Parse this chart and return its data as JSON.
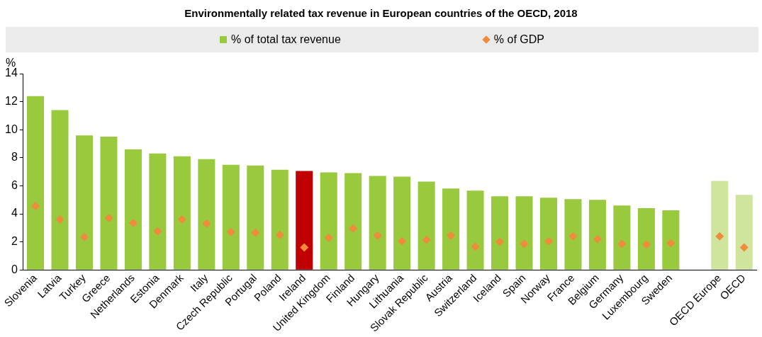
{
  "chart_data": {
    "type": "bar",
    "title": "Environmentally related tax revenue in European countries of the OECD, 2018",
    "ylabel": "%",
    "categories": [
      "Slovenia",
      "Latvia",
      "Turkey",
      "Greece",
      "Netherlands",
      "Estonia",
      "Denmark",
      "Italy",
      "Czech Republic",
      "Portugal",
      "Poland",
      "Ireland",
      "United Kingdom",
      "Finland",
      "Hungary",
      "Lithuania",
      "Slovak Republic",
      "Austria",
      "Switzerland",
      "Iceland",
      "Spain",
      "Norway",
      "France",
      "Belgium",
      "Germany",
      "Luxembourg",
      "Sweden",
      null,
      "OECD Europe",
      "OECD"
    ],
    "series": [
      {
        "name": "% of total tax revenue",
        "color": "#99c93c",
        "colors": [
          "#99c93c",
          "#99c93c",
          "#99c93c",
          "#99c93c",
          "#99c93c",
          "#99c93c",
          "#99c93c",
          "#99c93c",
          "#99c93c",
          "#99c93c",
          "#99c93c",
          "#c00000",
          "#99c93c",
          "#99c93c",
          "#99c93c",
          "#99c93c",
          "#99c93c",
          "#99c93c",
          "#99c93c",
          "#99c93c",
          "#99c93c",
          "#99c93c",
          "#99c93c",
          "#99c93c",
          "#99c93c",
          "#99c93c",
          "#99c93c",
          "#99c93c",
          "#cfe59e",
          "#cfe59e"
        ],
        "values": [
          12.4,
          11.4,
          9.6,
          9.5,
          8.6,
          8.3,
          8.1,
          7.9,
          7.5,
          7.45,
          7.15,
          7.05,
          6.95,
          6.9,
          6.7,
          6.65,
          6.3,
          5.8,
          5.65,
          5.25,
          5.25,
          5.15,
          5.05,
          5.0,
          4.6,
          4.4,
          4.25,
          null,
          6.35,
          5.35
        ]
      },
      {
        "name": "% of GDP",
        "type": "scatter",
        "color": "#f08a3c",
        "x": [
          "Slovenia",
          "Latvia",
          "Turkey",
          "Greece",
          "Netherlands",
          "Estonia",
          "Denmark",
          "Italy",
          "Czech Republic",
          "Portugal",
          "Poland",
          "Ireland",
          "United Kingdom",
          "Finland",
          "Hungary",
          "Lithuania",
          "Slovak Republic",
          "Austria",
          "Switzerland",
          "Iceland",
          "Spain",
          "Norway",
          "France",
          "Belgium",
          "Germany",
          "Luxembourg",
          "Sweden",
          null,
          "OECD Europe",
          "OECD"
        ],
        "values": [
          4.55,
          3.6,
          2.35,
          3.7,
          3.35,
          2.75,
          3.6,
          3.3,
          2.7,
          2.65,
          2.5,
          1.6,
          2.3,
          2.95,
          2.45,
          2.05,
          2.15,
          2.45,
          1.65,
          2.0,
          1.85,
          2.05,
          2.4,
          2.2,
          1.85,
          1.8,
          1.9,
          null,
          2.4,
          1.6
        ]
      }
    ],
    "marker": "diamond",
    "ylim": [
      0,
      14
    ],
    "yticks": [
      0,
      2,
      4,
      6,
      8,
      10,
      12,
      14
    ],
    "grid": false,
    "legend": "top"
  }
}
